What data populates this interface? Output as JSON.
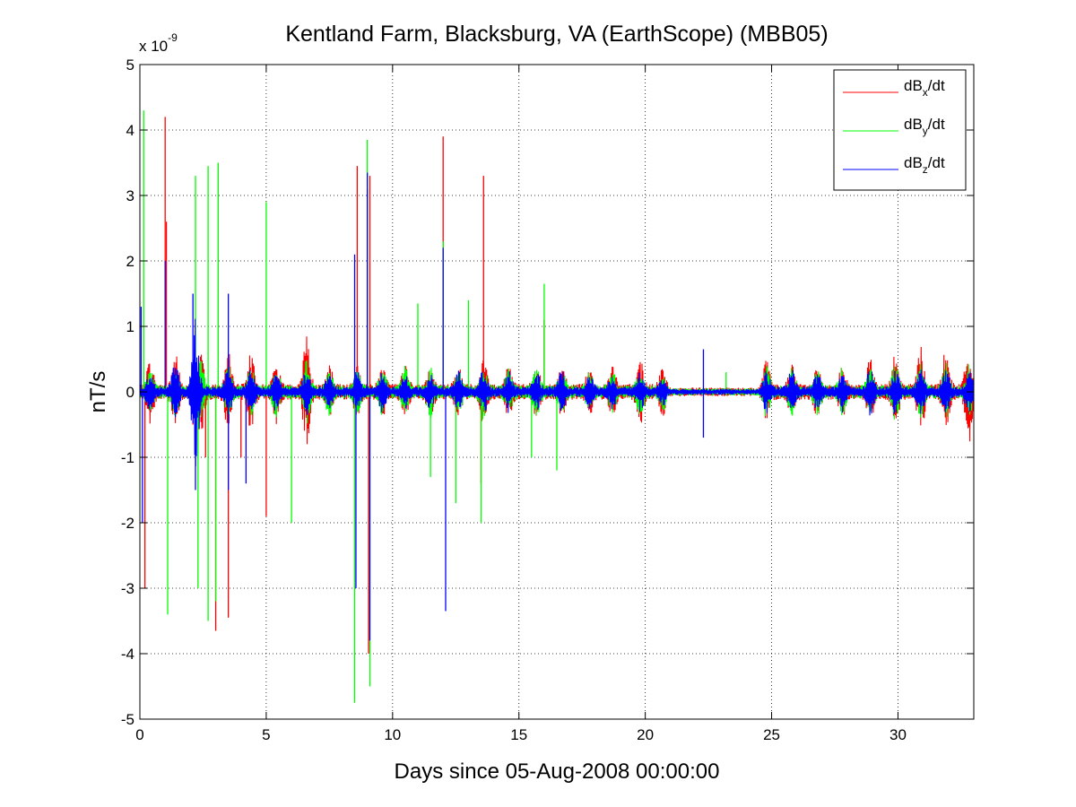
{
  "chart_data": {
    "type": "line",
    "title": "Kentland Farm, Blacksburg, VA (EarthScope) (MBB05)",
    "xlabel": "Days since 05-Aug-2008 00:00:00",
    "ylabel": "nT/s",
    "y_multiplier": {
      "base": "x 10",
      "exponent": "-9"
    },
    "xlim": [
      0,
      33
    ],
    "ylim": [
      -5,
      5
    ],
    "xticks": [
      "0",
      "5",
      "10",
      "15",
      "20",
      "25",
      "30"
    ],
    "xtick_values": [
      0,
      5,
      10,
      15,
      20,
      25,
      30
    ],
    "yticks": [
      "5",
      "4",
      "3",
      "2",
      "1",
      "0",
      "-1",
      "-2",
      "-3",
      "-4",
      "-5"
    ],
    "ytick_values": [
      5,
      4,
      3,
      2,
      1,
      0,
      -1,
      -2,
      -3,
      -4,
      -5
    ],
    "grid": true,
    "grid_style": "dotted",
    "legend_position": "top-right",
    "series": [
      {
        "name": "dBx/dt",
        "label_parts": {
          "base": "dB",
          "sub": "x",
          "suffix": "/dt"
        },
        "color": "#ff0000",
        "baseline_amplitude": 0.12,
        "daily_peaks": [
          [
            0.4,
            0.4
          ],
          [
            1.4,
            0.5
          ],
          [
            2.4,
            0.6
          ],
          [
            3.5,
            0.5
          ],
          [
            4.4,
            0.5
          ],
          [
            5.4,
            0.4
          ],
          [
            6.6,
            0.8
          ],
          [
            7.5,
            0.3
          ],
          [
            8.6,
            0.3
          ],
          [
            9.6,
            0.3
          ],
          [
            10.5,
            0.3
          ],
          [
            11.5,
            0.3
          ],
          [
            12.6,
            0.3
          ],
          [
            13.6,
            0.4
          ],
          [
            14.6,
            0.3
          ],
          [
            15.7,
            0.3
          ],
          [
            16.7,
            0.3
          ],
          [
            17.8,
            0.3
          ],
          [
            18.7,
            0.3
          ],
          [
            19.8,
            0.4
          ],
          [
            20.7,
            0.3
          ],
          [
            24.8,
            0.4
          ],
          [
            25.8,
            0.3
          ],
          [
            26.8,
            0.3
          ],
          [
            27.8,
            0.3
          ],
          [
            28.9,
            0.4
          ],
          [
            29.9,
            0.5
          ],
          [
            30.9,
            0.6
          ],
          [
            31.9,
            0.6
          ],
          [
            32.8,
            0.7
          ]
        ],
        "spikes": [
          [
            0.2,
            -3.0
          ],
          [
            1.0,
            4.2
          ],
          [
            1.05,
            2.6
          ],
          [
            2.1,
            -0.5
          ],
          [
            2.6,
            -1.0
          ],
          [
            3.0,
            -3.65
          ],
          [
            3.5,
            -3.45
          ],
          [
            4.0,
            -1.0
          ],
          [
            5.0,
            -1.9
          ],
          [
            8.6,
            3.45
          ],
          [
            9.0,
            3.1
          ],
          [
            9.05,
            -4.0
          ],
          [
            9.1,
            3.3
          ],
          [
            12.0,
            3.9
          ],
          [
            13.5,
            -1.4
          ],
          [
            13.6,
            3.3
          ],
          [
            16.0,
            1.1
          ]
        ]
      },
      {
        "name": "dBy/dt",
        "label_parts": {
          "base": "dB",
          "sub": "y",
          "suffix": "/dt"
        },
        "color": "#00ff00",
        "baseline_amplitude": 0.1,
        "daily_peaks": [
          [
            0.4,
            0.25
          ],
          [
            1.4,
            0.3
          ],
          [
            2.4,
            0.4
          ],
          [
            3.5,
            0.3
          ],
          [
            4.4,
            0.3
          ],
          [
            5.4,
            0.3
          ],
          [
            6.6,
            0.4
          ],
          [
            7.5,
            0.3
          ],
          [
            8.6,
            0.3
          ],
          [
            9.6,
            0.3
          ],
          [
            10.5,
            0.3
          ],
          [
            11.5,
            0.3
          ],
          [
            12.6,
            0.3
          ],
          [
            13.6,
            0.35
          ],
          [
            14.6,
            0.3
          ],
          [
            15.7,
            0.3
          ],
          [
            16.7,
            0.3
          ],
          [
            17.8,
            0.25
          ],
          [
            18.7,
            0.25
          ],
          [
            19.8,
            0.3
          ],
          [
            20.7,
            0.2
          ],
          [
            24.8,
            0.3
          ],
          [
            25.8,
            0.3
          ],
          [
            26.8,
            0.3
          ],
          [
            27.8,
            0.3
          ],
          [
            28.9,
            0.3
          ],
          [
            29.9,
            0.35
          ],
          [
            30.9,
            0.35
          ],
          [
            31.9,
            0.35
          ],
          [
            32.8,
            0.35
          ]
        ],
        "spikes": [
          [
            0.15,
            4.3
          ],
          [
            1.1,
            -3.4
          ],
          [
            2.2,
            3.3
          ],
          [
            2.3,
            -3.0
          ],
          [
            2.7,
            3.45
          ],
          [
            2.7,
            -3.5
          ],
          [
            3.1,
            3.5
          ],
          [
            3.0,
            -3.2
          ],
          [
            5.0,
            2.9
          ],
          [
            6.0,
            -2.0
          ],
          [
            8.5,
            -4.75
          ],
          [
            9.0,
            3.85
          ],
          [
            9.1,
            -4.5
          ],
          [
            11.0,
            1.35
          ],
          [
            11.5,
            -1.3
          ],
          [
            12.0,
            2.3
          ],
          [
            12.5,
            -1.7
          ],
          [
            13.0,
            1.4
          ],
          [
            13.5,
            -2.0
          ],
          [
            15.5,
            -1.0
          ],
          [
            16.0,
            1.65
          ],
          [
            16.5,
            -1.2
          ],
          [
            23.2,
            0.3
          ]
        ]
      },
      {
        "name": "dBz/dt",
        "label_parts": {
          "base": "dB",
          "sub": "z",
          "suffix": "/dt"
        },
        "color": "#0000ff",
        "baseline_amplitude": 0.08,
        "daily_peaks": [
          [
            0.4,
            0.2
          ],
          [
            1.4,
            0.4
          ],
          [
            2.2,
            1.1
          ],
          [
            3.5,
            0.3
          ],
          [
            4.4,
            0.3
          ],
          [
            5.4,
            0.25
          ],
          [
            6.6,
            0.3
          ],
          [
            7.5,
            0.2
          ],
          [
            8.6,
            0.25
          ],
          [
            9.6,
            0.25
          ],
          [
            10.5,
            0.2
          ],
          [
            11.5,
            0.2
          ],
          [
            12.6,
            0.25
          ],
          [
            13.6,
            0.3
          ],
          [
            14.6,
            0.25
          ],
          [
            15.7,
            0.25
          ],
          [
            16.7,
            0.25
          ],
          [
            17.8,
            0.2
          ],
          [
            18.7,
            0.2
          ],
          [
            19.8,
            0.25
          ],
          [
            20.7,
            0.15
          ],
          [
            24.8,
            0.25
          ],
          [
            25.8,
            0.3
          ],
          [
            26.8,
            0.25
          ],
          [
            27.8,
            0.25
          ],
          [
            28.9,
            0.3
          ],
          [
            29.9,
            0.3
          ],
          [
            30.9,
            0.3
          ],
          [
            31.9,
            0.3
          ],
          [
            32.8,
            0.3
          ]
        ],
        "spikes": [
          [
            0.05,
            1.3
          ],
          [
            0.1,
            -2.0
          ],
          [
            1.0,
            2.0
          ],
          [
            2.1,
            1.5
          ],
          [
            2.2,
            -1.5
          ],
          [
            3.5,
            1.5
          ],
          [
            3.5,
            -1.5
          ],
          [
            4.2,
            -1.4
          ],
          [
            8.5,
            2.1
          ],
          [
            8.55,
            -3.0
          ],
          [
            9.0,
            3.35
          ],
          [
            9.1,
            -3.8
          ],
          [
            12.0,
            2.2
          ],
          [
            12.1,
            -3.35
          ],
          [
            22.3,
            0.65
          ],
          [
            22.3,
            -0.7
          ]
        ]
      }
    ]
  }
}
